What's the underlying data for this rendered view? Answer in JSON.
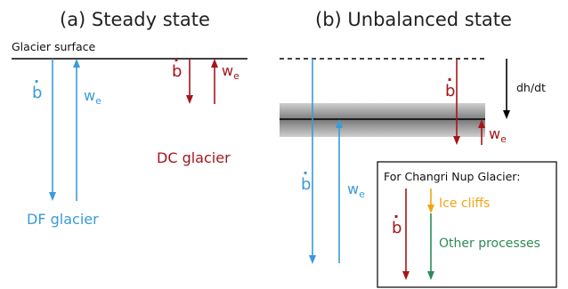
{
  "panel_a": {
    "title": "(a) Steady state",
    "surface_label": "Glacier surface",
    "df": {
      "b_label": "b",
      "b_dot": "·",
      "we_main": "w",
      "we_sub": "e",
      "glacier_label": "DF glacier"
    },
    "dc": {
      "b_label": "b",
      "b_dot": "·",
      "we_main": "w",
      "we_sub": "e",
      "glacier_label": "DC glacier"
    }
  },
  "panel_b": {
    "title": "(b) Unbalanced state",
    "dh_label": "dh/dt",
    "red": {
      "b_label": "b",
      "b_dot": "·",
      "we_main": "w",
      "we_sub": "e"
    },
    "blue": {
      "b_label": "b",
      "b_dot": "·",
      "we_main": "w",
      "we_sub": "e"
    }
  },
  "legend": {
    "title": "For Changri Nup Glacier:",
    "b_label": "b",
    "b_dot": "·",
    "ice_cliffs": "Ice cliffs",
    "other": "Other processes"
  },
  "colors": {
    "blue": "#3a9bd9",
    "red": "#a4161a",
    "orange": "#f2a413",
    "green": "#2e8b57",
    "black": "#000000"
  }
}
